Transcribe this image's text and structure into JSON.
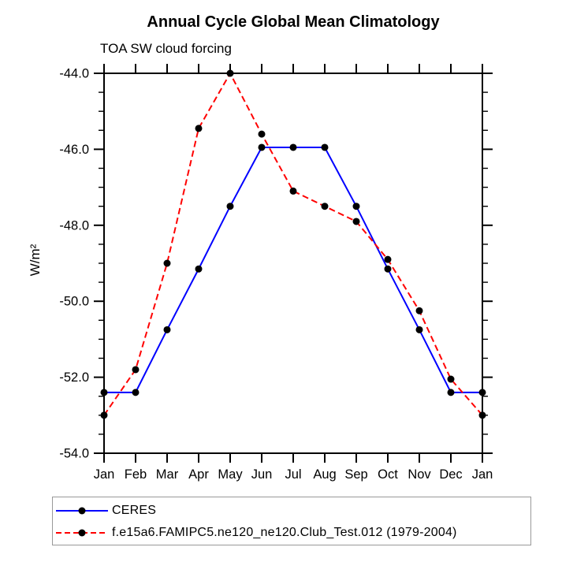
{
  "chart_data": {
    "type": "line",
    "title": "Annual Cycle Global Mean Climatology",
    "subtitle": "TOA SW cloud forcing",
    "ylabel": "W/m²",
    "xlabel": "",
    "categories": [
      "Jan",
      "Feb",
      "Mar",
      "Apr",
      "May",
      "Jun",
      "Jul",
      "Aug",
      "Sep",
      "Oct",
      "Nov",
      "Dec",
      "Jan"
    ],
    "ylim": [
      -54,
      -44
    ],
    "yticks": [
      -44,
      -46,
      -48,
      -50,
      -52,
      -54
    ],
    "ytick_labels": [
      "-44.0",
      "-46.0",
      "-48.0",
      "-50.0",
      "-52.0",
      "-54.0"
    ],
    "minor_tick_step": 0.5,
    "grid": "off",
    "legend_position": "below",
    "marker": "filled-circle",
    "marker_color": "#000000",
    "axis_color": "#000000",
    "series": [
      {
        "name": "CERES",
        "color": "#0000ff",
        "style": "solid",
        "values": [
          -52.4,
          -52.4,
          -50.75,
          -49.15,
          -47.5,
          -45.95,
          -45.95,
          -45.95,
          -47.5,
          -49.15,
          -50.75,
          -52.4,
          -52.4
        ]
      },
      {
        "name": "f.e15a6.FAMIPC5.ne120_ne120.Club_Test.012 (1979-2004)",
        "color": "#ff0000",
        "style": "dashed",
        "values": [
          -53.0,
          -51.8,
          -49.0,
          -45.45,
          -44.0,
          -45.6,
          -47.1,
          -47.5,
          -47.9,
          -48.9,
          -50.25,
          -52.05,
          -53.0
        ]
      }
    ]
  }
}
